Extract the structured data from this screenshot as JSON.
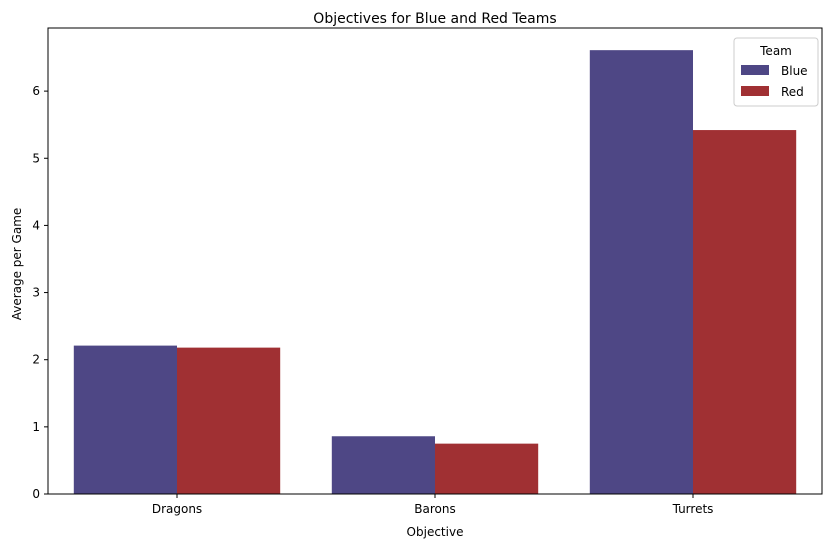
{
  "chart_data": {
    "type": "bar",
    "title": "Objectives for Blue and Red Teams",
    "xlabel": "Objective",
    "ylabel": "Average per Game",
    "categories": [
      "Dragons",
      "Barons",
      "Turrets"
    ],
    "series": [
      {
        "name": "Blue",
        "color": "#4E4785",
        "values": [
          2.21,
          0.86,
          6.61
        ]
      },
      {
        "name": "Red",
        "color": "#A03033",
        "values": [
          2.18,
          0.75,
          5.42
        ]
      }
    ],
    "ylim": [
      0,
      6.94
    ],
    "yticks": [
      "0",
      "1",
      "2",
      "3",
      "4",
      "5",
      "6"
    ],
    "grid": false,
    "legend": {
      "title": "Team",
      "position": "top-right"
    }
  }
}
